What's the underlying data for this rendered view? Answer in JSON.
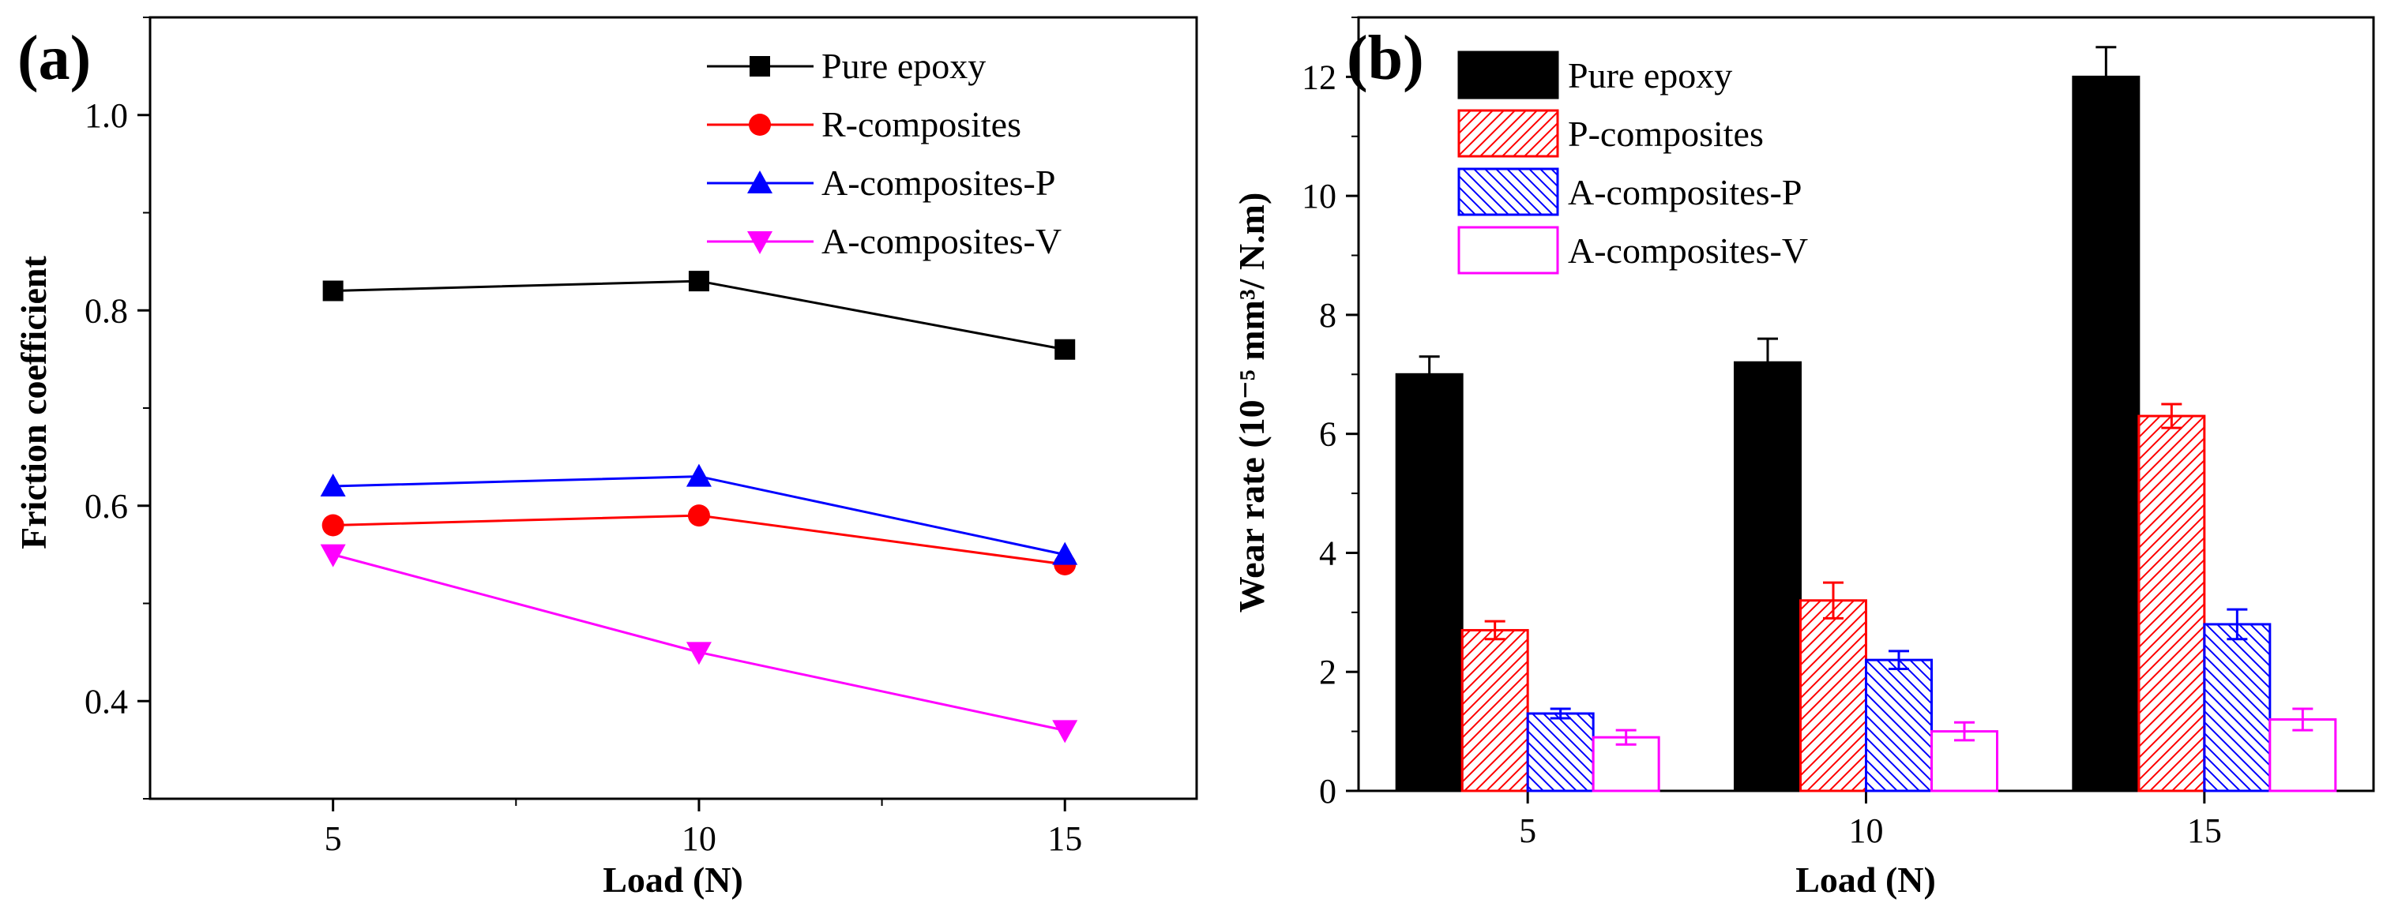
{
  "chart_data": [
    {
      "panel_label": "(a)",
      "type": "line",
      "xlabel": "Load (N)",
      "ylabel": "Friction coefficient",
      "x": [
        5,
        10,
        15
      ],
      "xlim": [
        2.5,
        16.8
      ],
      "ylim": [
        0.3,
        1.1
      ],
      "xticks": [
        "5",
        "10",
        "15"
      ],
      "yticks": [
        "0.4",
        "0.6",
        "0.8",
        "1.0"
      ],
      "grid": false,
      "legend_position": "top-right",
      "series": [
        {
          "name": "Pure epoxy",
          "values": [
            0.82,
            0.83,
            0.76
          ],
          "color": "#000000",
          "marker": "square"
        },
        {
          "name": "R-composites",
          "values": [
            0.58,
            0.59,
            0.54
          ],
          "color": "#ff0000",
          "marker": "circle"
        },
        {
          "name": "A-composites-P",
          "values": [
            0.62,
            0.63,
            0.55
          ],
          "color": "#0000ff",
          "marker": "triangle-up"
        },
        {
          "name": "A-composites-V",
          "values": [
            0.55,
            0.45,
            0.37
          ],
          "color": "#ff00ff",
          "marker": "triangle-down"
        }
      ]
    },
    {
      "panel_label": "(b)",
      "type": "bar",
      "xlabel": "Load (N)",
      "ylabel": "Wear rate (10⁻⁵ mm³/ N.m)",
      "categories": [
        "5",
        "10",
        "15"
      ],
      "ylim": [
        0,
        13
      ],
      "yticks": [
        "0",
        "2",
        "4",
        "6",
        "8",
        "10",
        "12"
      ],
      "grid": false,
      "legend_position": "top-left",
      "series": [
        {
          "name": "Pure epoxy",
          "values": [
            7.0,
            7.2,
            12.0
          ],
          "errors": [
            0.3,
            0.4,
            0.5
          ],
          "color": "#000000",
          "fill": "solid"
        },
        {
          "name": "P-composites",
          "values": [
            2.7,
            3.2,
            6.3
          ],
          "errors": [
            0.15,
            0.3,
            0.2
          ],
          "color": "#ff0000",
          "fill": "hatch-forward"
        },
        {
          "name": "A-composites-P",
          "values": [
            1.3,
            2.2,
            2.8
          ],
          "errors": [
            0.08,
            0.15,
            0.25
          ],
          "color": "#0000ff",
          "fill": "hatch-backward"
        },
        {
          "name": "A-composites-V",
          "values": [
            0.9,
            1.0,
            1.2
          ],
          "errors": [
            0.12,
            0.15,
            0.18
          ],
          "color": "#ff00ff",
          "fill": "empty"
        }
      ]
    }
  ]
}
